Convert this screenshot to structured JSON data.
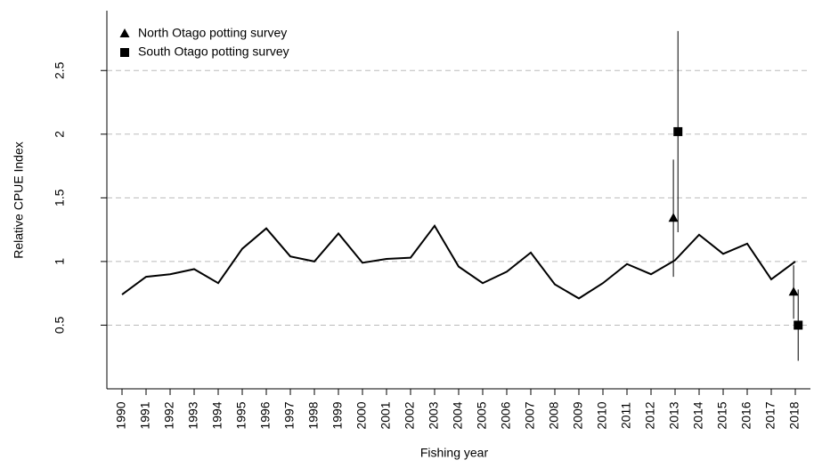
{
  "chart_data": {
    "type": "line",
    "xlabel": "Fishing year",
    "ylabel": "Relative CPUE Index",
    "xlim": [
      1989.37,
      2018.63
    ],
    "ylim": [
      0,
      2.97
    ],
    "xticks": [
      1990,
      1991,
      1992,
      1993,
      1994,
      1995,
      1996,
      1997,
      1998,
      1999,
      2000,
      2001,
      2002,
      2003,
      2004,
      2005,
      2006,
      2007,
      2008,
      2009,
      2010,
      2011,
      2012,
      2013,
      2014,
      2015,
      2016,
      2017,
      2018
    ],
    "yticks": [
      0.5,
      1,
      1.5,
      2,
      2.5
    ],
    "grid": true,
    "legend": "topleft",
    "series": [
      {
        "marker": "line",
        "color": "#000000",
        "x": [
          1990,
          1991,
          1992,
          1993,
          1994,
          1995,
          1996,
          1997,
          1998,
          1999,
          2000,
          2001,
          2002,
          2003,
          2004,
          2005,
          2006,
          2007,
          2008,
          2009,
          2010,
          2011,
          2012,
          2013,
          2014,
          2015,
          2016,
          2017,
          2018
        ],
        "values": [
          0.74,
          0.88,
          0.9,
          0.94,
          0.83,
          1.1,
          1.26,
          1.04,
          1.0,
          1.22,
          0.99,
          1.02,
          1.03,
          1.28,
          0.96,
          0.83,
          0.92,
          1.07,
          0.82,
          0.71,
          0.83,
          0.98,
          0.9,
          1.01,
          1.21,
          1.06,
          1.14,
          0.86,
          1.0
        ]
      },
      {
        "name": "North Otago potting survey",
        "marker": "triangle",
        "color": "#000000",
        "x": [
          2012.93,
          2017.93
        ],
        "values": [
          1.34,
          0.76
        ],
        "errors": [
          0.46,
          0.21
        ]
      },
      {
        "name": "South Otago potting survey",
        "marker": "square",
        "color": "#000000",
        "x": [
          2013.12,
          2018.12
        ],
        "values": [
          2.02,
          0.5
        ],
        "errors": [
          0.79,
          0.28
        ]
      }
    ]
  }
}
